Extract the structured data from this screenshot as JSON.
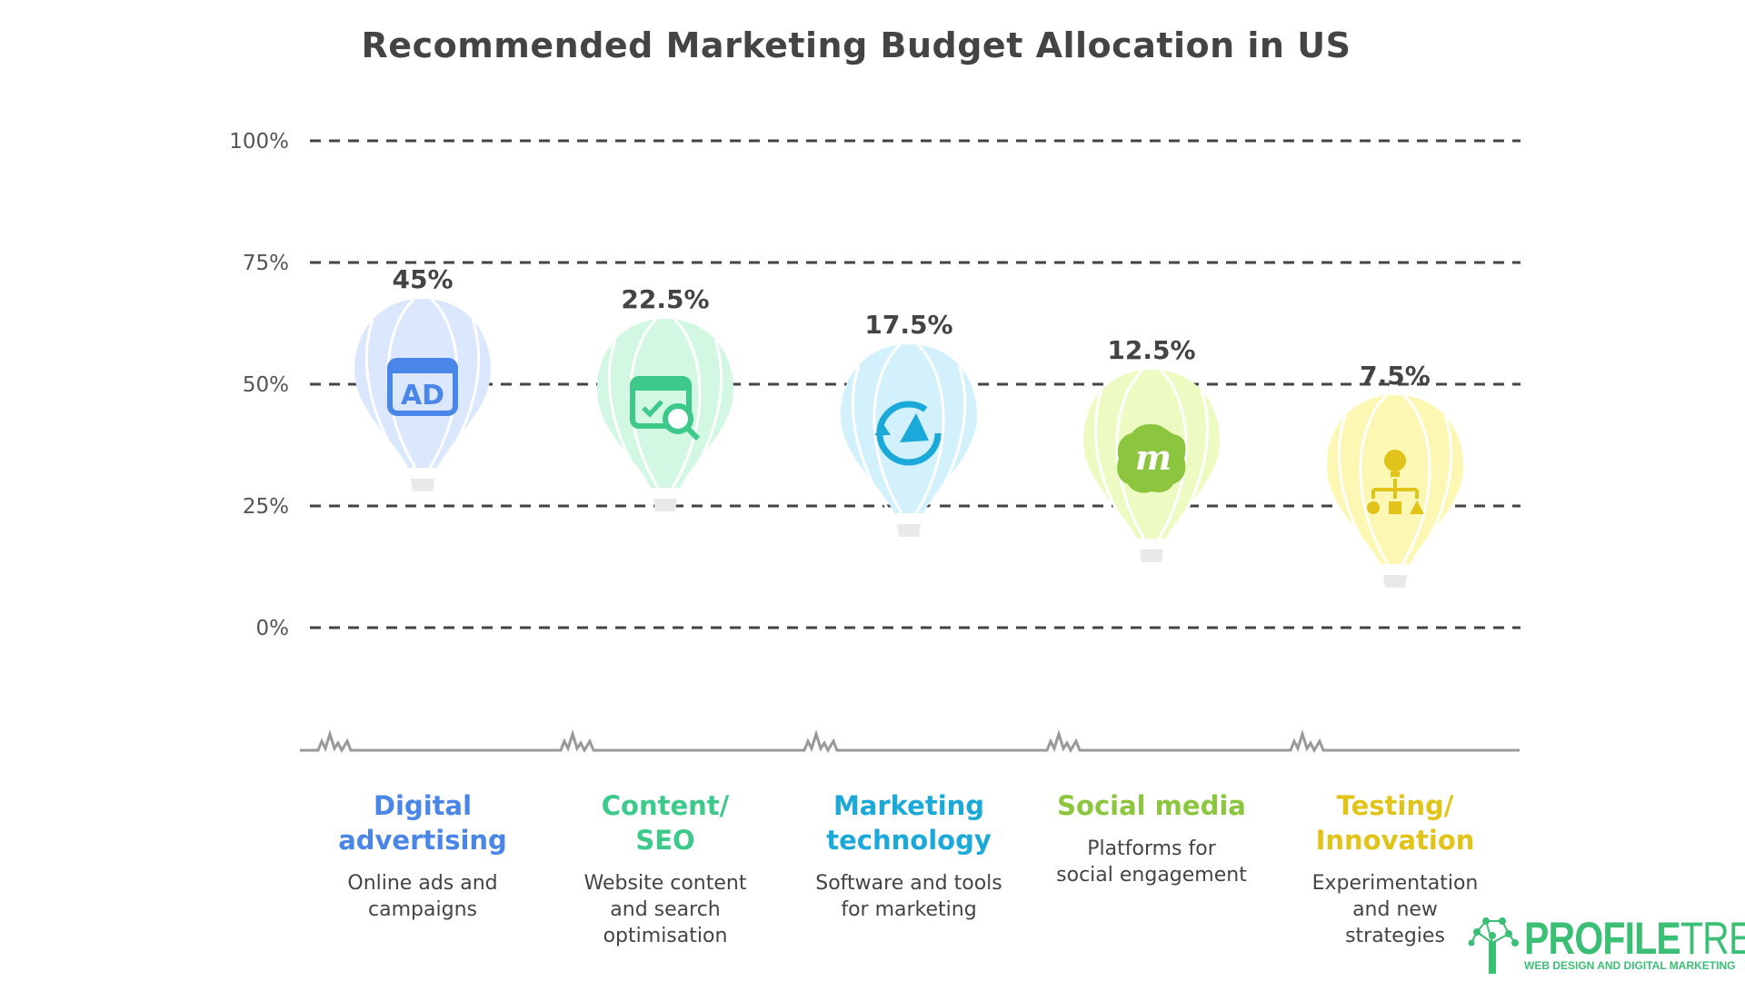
{
  "chart_data": {
    "type": "bar",
    "title": "Recommended Marketing Budget Allocation in US",
    "ylim": [
      0,
      100
    ],
    "yticks": [
      "0%",
      "25%",
      "50%",
      "75%",
      "100%"
    ],
    "grid": true,
    "categories": [
      "Digital advertising",
      "Content/ SEO",
      "Marketing technology",
      "Social media",
      "Testing/ Innovation"
    ],
    "values": [
      45,
      22.5,
      17.5,
      12.5,
      7.5
    ],
    "data_labels": [
      "45%",
      "22.5%",
      "17.5%",
      "12.5%",
      "7.5%"
    ],
    "items": [
      {
        "name_lines": [
          "Digital",
          "advertising"
        ],
        "desc_lines": [
          "Online ads and",
          "campaigns"
        ],
        "color": "#4a86e8",
        "balloon_color": "#dae7fd",
        "icon": "ad-window-icon"
      },
      {
        "name_lines": [
          "Content/",
          "SEO"
        ],
        "desc_lines": [
          "Website content",
          "and search",
          "optimisation"
        ],
        "color": "#3cc98a",
        "balloon_color": "#d2f8e4",
        "icon": "seo-search-icon"
      },
      {
        "name_lines": [
          "Marketing",
          "technology"
        ],
        "desc_lines": [
          "Software and tools",
          "for marketing"
        ],
        "color": "#1aa9d9",
        "balloon_color": "#d3f1fc",
        "icon": "megaphone-refresh-icon"
      },
      {
        "name_lines": [
          "Social media"
        ],
        "desc_lines": [
          "Platforms for",
          "social engagement"
        ],
        "color": "#8cc63f",
        "balloon_color": "#edfbc3",
        "icon": "meetup-badge-icon"
      },
      {
        "name_lines": [
          "Testing/",
          "Innovation"
        ],
        "desc_lines": [
          "Experimentation",
          "and new",
          "strategies"
        ],
        "color": "#e2c31a",
        "balloon_color": "#fdf7b4",
        "icon": "idea-flowchart-icon"
      }
    ]
  },
  "logo": {
    "brand_bold": "PROFILE",
    "brand_light": "TREE",
    "tagline": "WEB DESIGN AND DIGITAL MARKETING",
    "color": "#3bbf74"
  }
}
